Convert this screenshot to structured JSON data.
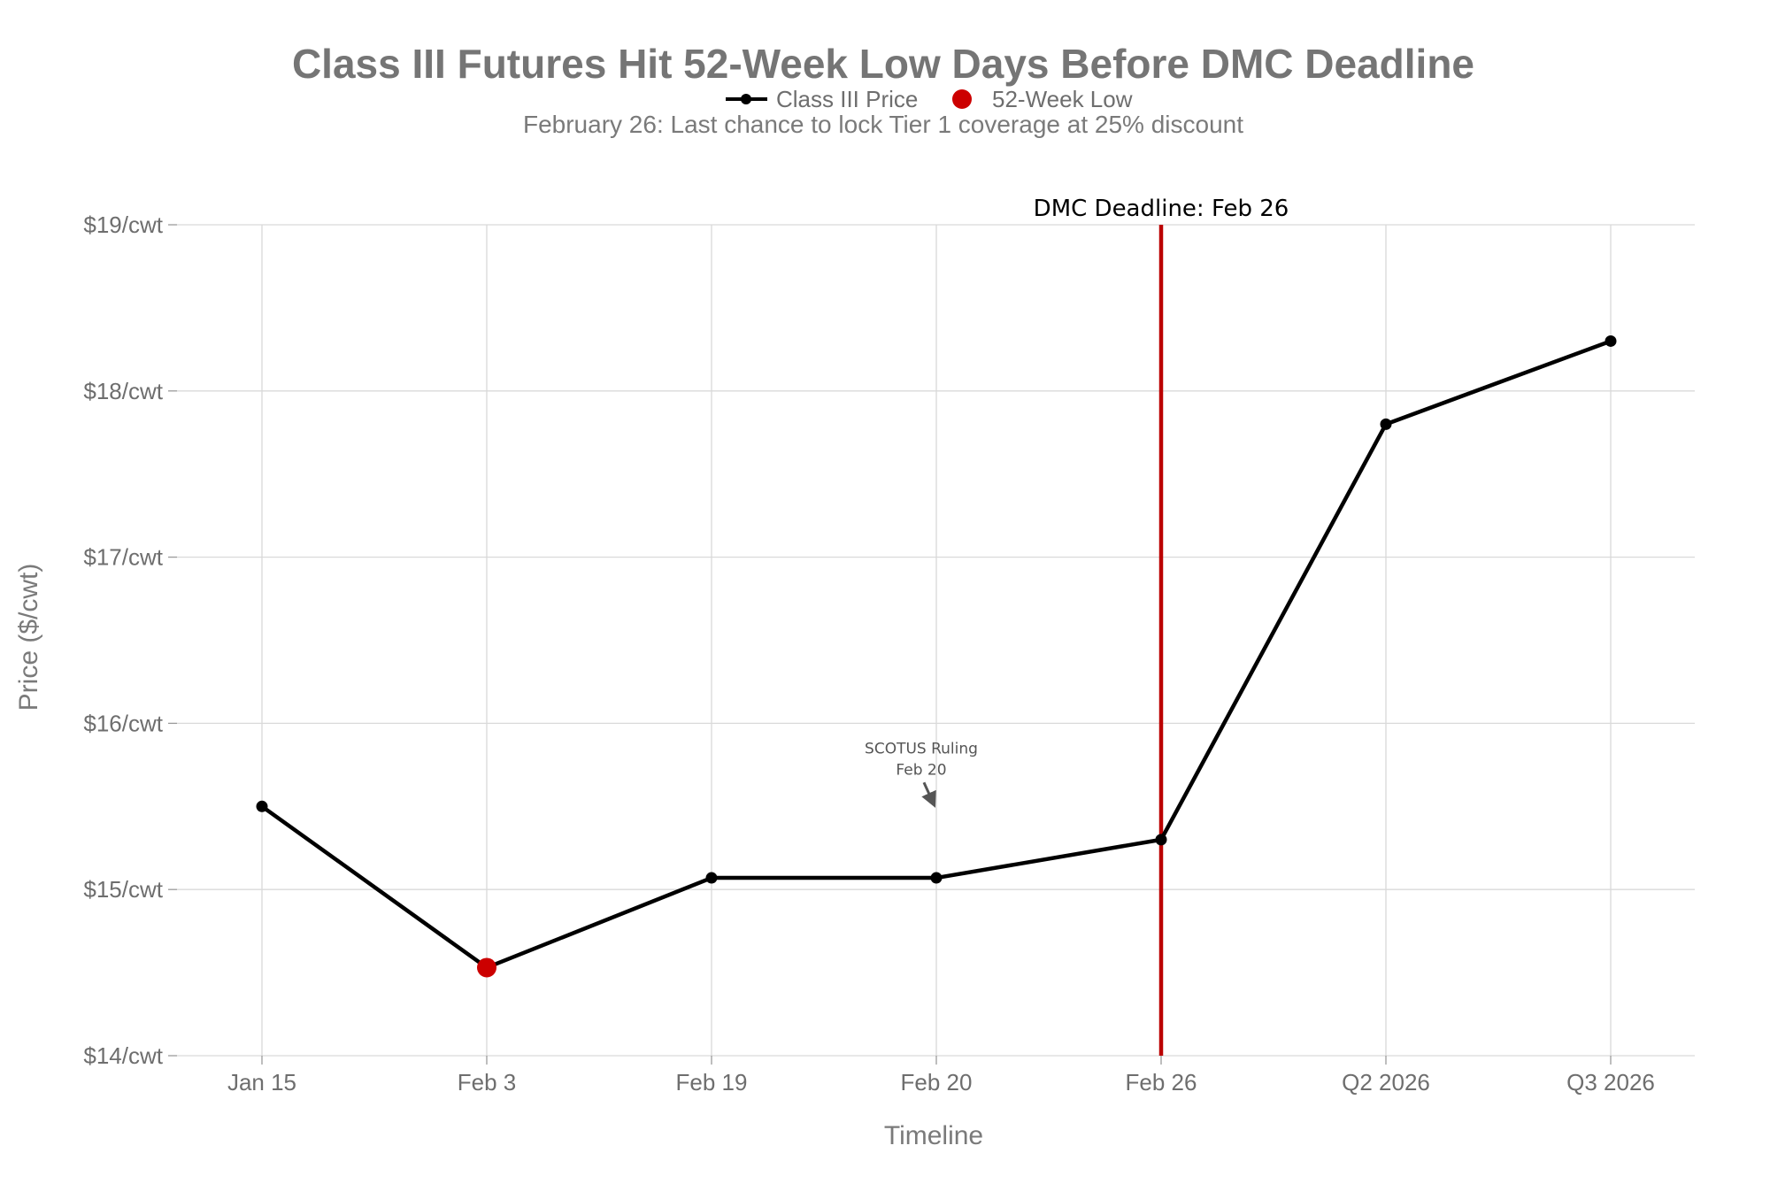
{
  "chart_data": {
    "type": "line",
    "title": "Class III Futures Hit 52-Week Low Days Before DMC Deadline",
    "subtitle": "February 26: Last chance to lock Tier 1 coverage at 25% discount",
    "xlabel": "Timeline",
    "ylabel": "Price ($/cwt)",
    "categories": [
      "Jan 15",
      "Feb 3",
      "Feb 19",
      "Feb 20",
      "Feb 26",
      "Q2 2026",
      "Q3 2026"
    ],
    "ylim": [
      14,
      19
    ],
    "y_ticks": [
      14,
      15,
      16,
      17,
      18,
      19
    ],
    "y_tick_labels": [
      "$14/cwt",
      "$15/cwt",
      "$16/cwt",
      "$17/cwt",
      "$18/cwt",
      "$19/cwt"
    ],
    "grid": true,
    "legend_position": "top-center",
    "legend": [
      {
        "label": "Class III Price",
        "marker": "line-dot",
        "color": "#000000"
      },
      {
        "label": "52-Week Low",
        "marker": "dot",
        "color": "#cc0000"
      }
    ],
    "series": [
      {
        "name": "Class III Price",
        "color": "#000000",
        "values": [
          15.5,
          14.53,
          15.07,
          15.07,
          15.3,
          17.8,
          18.3
        ]
      }
    ],
    "highlight_points": [
      {
        "name": "52-Week Low",
        "category": "Feb 3",
        "value": 14.53,
        "color": "#cc0000"
      }
    ],
    "vertical_lines": [
      {
        "category": "Feb 26",
        "label": "DMC Deadline: Feb 26",
        "color": "#bb0000"
      }
    ],
    "annotations": [
      {
        "lines": [
          "SCOTUS Ruling",
          "Feb 20"
        ],
        "category": "Feb 20",
        "value": 15.5,
        "arrow": true,
        "color": "#555555"
      }
    ]
  }
}
